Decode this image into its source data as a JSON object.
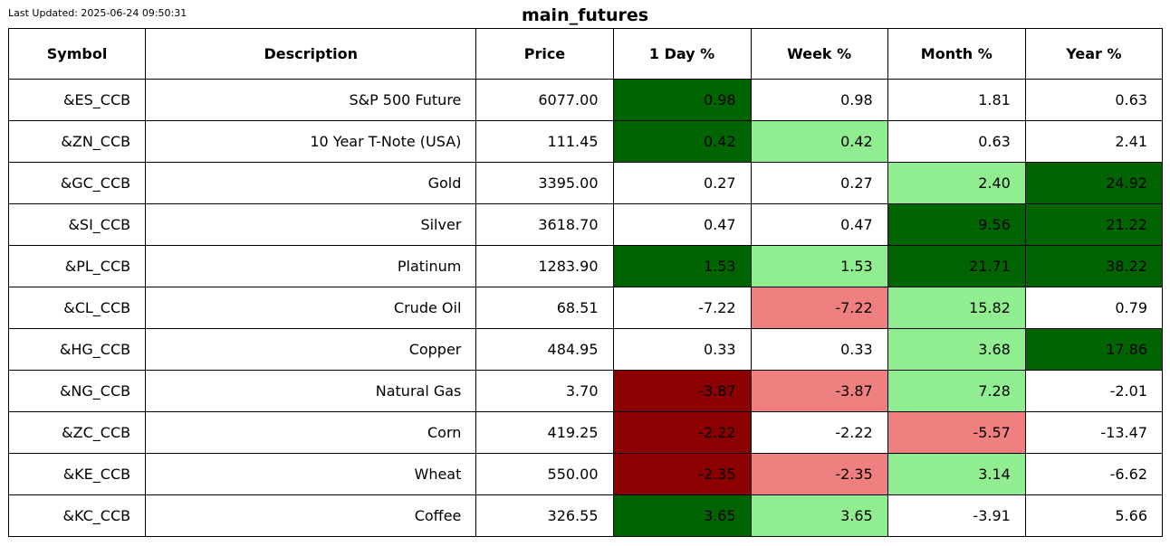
{
  "last_updated": "Last Updated: 2025-06-24 09:50:31",
  "title": "main_futures",
  "colors": {
    "strong_up": "#006400",
    "up": "#90ee90",
    "down": "#f08080",
    "strong_down": "#8b0000",
    "neutral": "#ffffff"
  },
  "chart_data": {
    "type": "table",
    "title": "main_futures",
    "columns": [
      "Symbol",
      "Description",
      "Price",
      "1 Day %",
      "Week %",
      "Month %",
      "Year %"
    ],
    "rows": [
      {
        "symbol": "&ES_CCB",
        "description": "S&P 500 Future",
        "price": "6077.00",
        "day": "0.98",
        "week": "0.98",
        "month": "1.81",
        "year": "0.63",
        "shade": [
          "strong_up",
          "neutral",
          "neutral",
          "neutral"
        ]
      },
      {
        "symbol": "&ZN_CCB",
        "description": "10 Year T-Note (USA)",
        "price": "111.45",
        "day": "0.42",
        "week": "0.42",
        "month": "0.63",
        "year": "2.41",
        "shade": [
          "strong_up",
          "up",
          "neutral",
          "neutral"
        ]
      },
      {
        "symbol": "&GC_CCB",
        "description": "Gold",
        "price": "3395.00",
        "day": "0.27",
        "week": "0.27",
        "month": "2.40",
        "year": "24.92",
        "shade": [
          "neutral",
          "neutral",
          "up",
          "strong_up"
        ]
      },
      {
        "symbol": "&SI_CCB",
        "description": "Silver",
        "price": "3618.70",
        "day": "0.47",
        "week": "0.47",
        "month": "9.56",
        "year": "21.22",
        "shade": [
          "neutral",
          "neutral",
          "strong_up",
          "strong_up"
        ]
      },
      {
        "symbol": "&PL_CCB",
        "description": "Platinum",
        "price": "1283.90",
        "day": "1.53",
        "week": "1.53",
        "month": "21.71",
        "year": "38.22",
        "shade": [
          "strong_up",
          "up",
          "strong_up",
          "strong_up"
        ]
      },
      {
        "symbol": "&CL_CCB",
        "description": "Crude Oil",
        "price": "68.51",
        "day": "-7.22",
        "week": "-7.22",
        "month": "15.82",
        "year": "0.79",
        "shade": [
          "neutral",
          "down",
          "up",
          "neutral"
        ]
      },
      {
        "symbol": "&HG_CCB",
        "description": "Copper",
        "price": "484.95",
        "day": "0.33",
        "week": "0.33",
        "month": "3.68",
        "year": "17.86",
        "shade": [
          "neutral",
          "neutral",
          "up",
          "strong_up"
        ]
      },
      {
        "symbol": "&NG_CCB",
        "description": "Natural Gas",
        "price": "3.70",
        "day": "-3.87",
        "week": "-3.87",
        "month": "7.28",
        "year": "-2.01",
        "shade": [
          "strong_down",
          "down",
          "up",
          "neutral"
        ]
      },
      {
        "symbol": "&ZC_CCB",
        "description": "Corn",
        "price": "419.25",
        "day": "-2.22",
        "week": "-2.22",
        "month": "-5.57",
        "year": "-13.47",
        "shade": [
          "strong_down",
          "neutral",
          "down",
          "neutral"
        ]
      },
      {
        "symbol": "&KE_CCB",
        "description": "Wheat",
        "price": "550.00",
        "day": "-2.35",
        "week": "-2.35",
        "month": "3.14",
        "year": "-6.62",
        "shade": [
          "strong_down",
          "down",
          "up",
          "neutral"
        ]
      },
      {
        "symbol": "&KC_CCB",
        "description": "Coffee",
        "price": "326.55",
        "day": "3.65",
        "week": "3.65",
        "month": "-3.91",
        "year": "5.66",
        "shade": [
          "strong_up",
          "up",
          "neutral",
          "neutral"
        ]
      }
    ]
  }
}
